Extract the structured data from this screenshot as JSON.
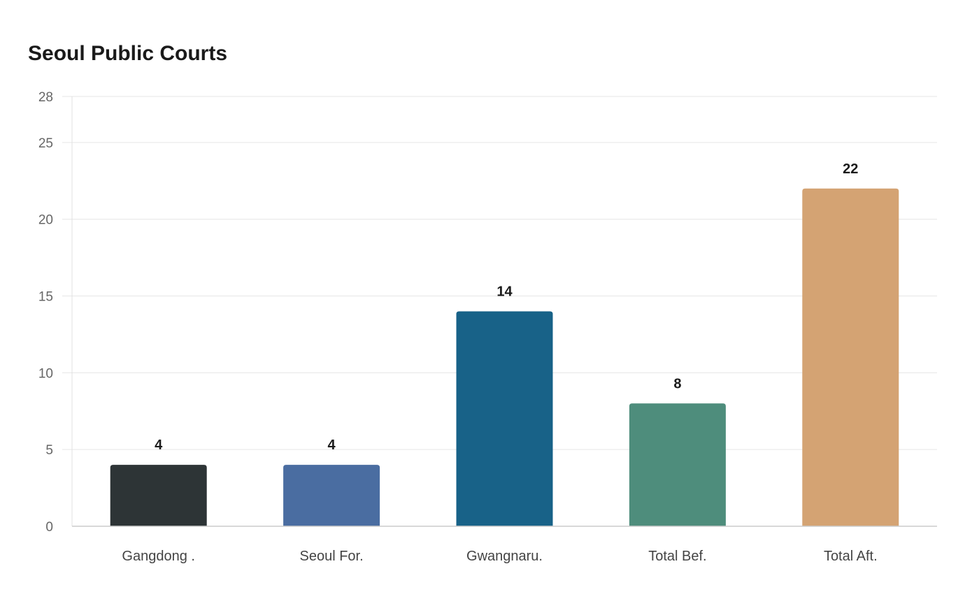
{
  "chart_data": {
    "type": "bar",
    "title": "Seoul Public Courts",
    "xlabel": "",
    "ylabel": "",
    "categories": [
      "Gangdong .",
      "Seoul For.",
      "Gwangnaru.",
      "Total Bef.",
      "Total Aft."
    ],
    "values": [
      4,
      4,
      14,
      8,
      22
    ],
    "colors": [
      "#2d3436",
      "#4a6da1",
      "#186288",
      "#4e8d7c",
      "#d4a373"
    ],
    "ylim": [
      0,
      28
    ],
    "yticks": [
      0,
      5,
      10,
      15,
      20,
      25,
      28
    ],
    "grid": true,
    "data_labels": true
  }
}
